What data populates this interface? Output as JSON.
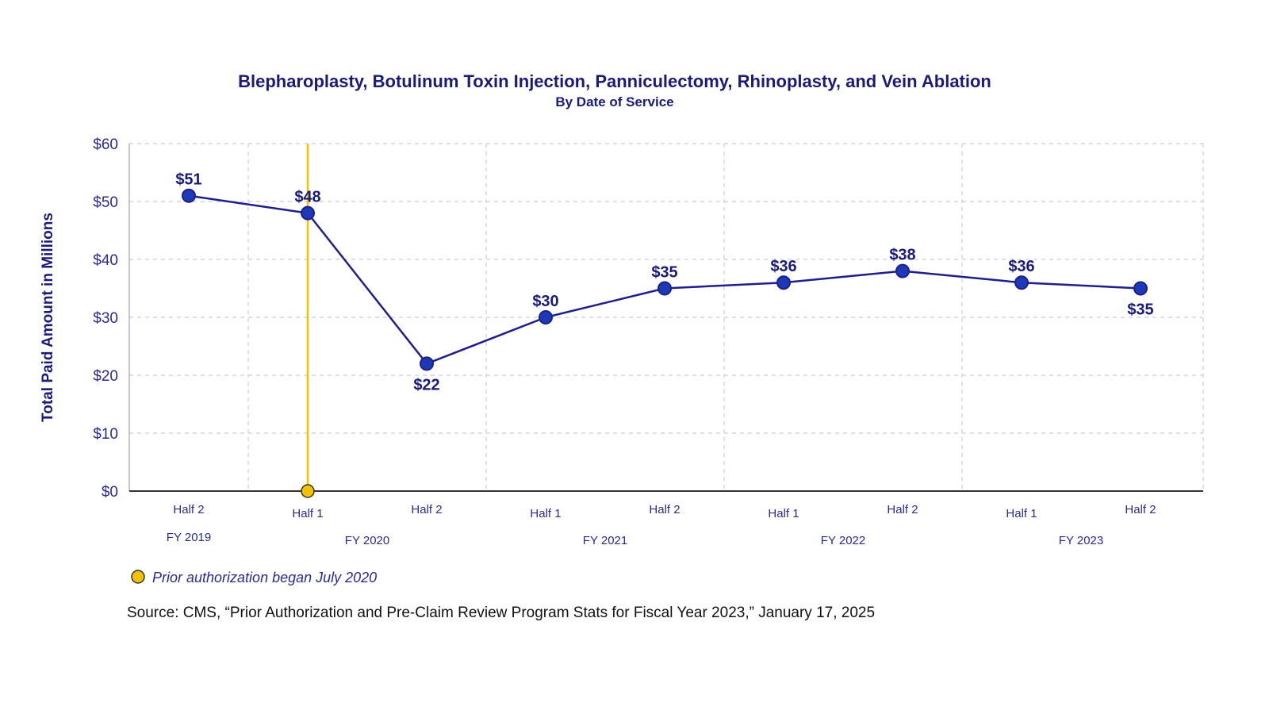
{
  "chart_data": {
    "type": "line",
    "title": "Blepharoplasty, Botulinum Toxin Injection, Panniculectomy, Rhinoplasty, and Vein Ablation",
    "subtitle": "By Date of Service",
    "ylabel": "Total Paid Amount in Millions",
    "xlabel": "",
    "ylim": [
      0,
      60
    ],
    "yticks": [
      0,
      10,
      20,
      30,
      40,
      50,
      60
    ],
    "ytick_labels": [
      "$0",
      "$10",
      "$20",
      "$30",
      "$40",
      "$50",
      "$60"
    ],
    "categories": [
      "Half 2",
      "Half 1",
      "Half 2",
      "Half 1",
      "Half 2",
      "Half 1",
      "Half 2",
      "Half 1",
      "Half 2"
    ],
    "groups": [
      {
        "label": "FY 2019",
        "start": 0,
        "end": 0
      },
      {
        "label": "FY 2020",
        "start": 1,
        "end": 2
      },
      {
        "label": "FY 2021",
        "start": 3,
        "end": 4
      },
      {
        "label": "FY 2022",
        "start": 5,
        "end": 6
      },
      {
        "label": "FY 2023",
        "start": 7,
        "end": 8
      }
    ],
    "series": [
      {
        "name": "Total Paid Amount",
        "values": [
          51,
          48,
          22,
          30,
          35,
          36,
          38,
          36,
          35
        ]
      }
    ],
    "data_labels": [
      "$51",
      "$48",
      "$22",
      "$30",
      "$35",
      "$36",
      "$38",
      "$36",
      "$35"
    ],
    "marker_line": {
      "category_index": 1,
      "label": "Prior authorization began July 2020"
    },
    "grid": true,
    "legend": "bottom-left"
  },
  "source_note": "Source: CMS, “Prior Authorization and Pre-Claim Review Program Stats for Fiscal Year 2023,” January 17, 2025",
  "colors": {
    "title": "#1a1a7a",
    "axis_text": "#2b2b8f",
    "series": "#1f1f8c",
    "marker_fill": "#1c3ab8",
    "highlight": "#f2c200",
    "grid": "#c8cbe0",
    "axis": "#333333"
  }
}
